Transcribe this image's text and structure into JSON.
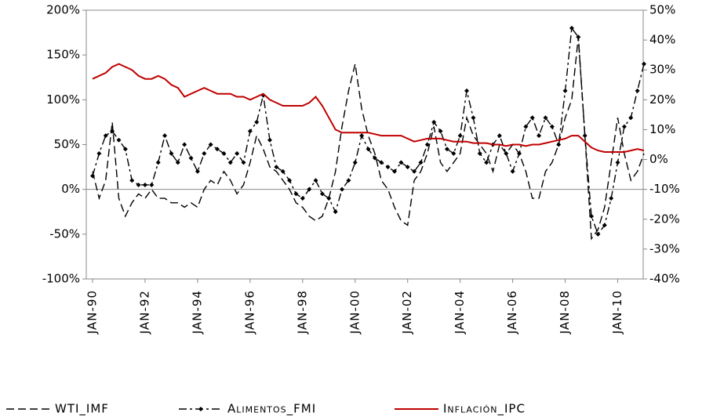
{
  "chart_data": {
    "type": "line",
    "categories": [
      "JAN-90",
      null,
      null,
      null,
      null,
      null,
      null,
      null,
      "JAN-92",
      null,
      null,
      null,
      null,
      null,
      null,
      null,
      "JAN-94",
      null,
      null,
      null,
      null,
      null,
      null,
      null,
      "JAN-96",
      null,
      null,
      null,
      null,
      null,
      null,
      null,
      "JAN-98",
      null,
      null,
      null,
      null,
      null,
      null,
      null,
      "JAN-00",
      null,
      null,
      null,
      null,
      null,
      null,
      null,
      "JAN-02",
      null,
      null,
      null,
      null,
      null,
      null,
      null,
      "JAN-04",
      null,
      null,
      null,
      null,
      null,
      null,
      null,
      "JAN-06",
      null,
      null,
      null,
      null,
      null,
      null,
      null,
      "JAN-08",
      null,
      null,
      null,
      null,
      null,
      null,
      null,
      "JAN-10",
      null,
      null,
      null,
      null
    ],
    "series": [
      {
        "name": "WTI_IMF",
        "color": "#000000",
        "line_style": "dashed",
        "marker": "none",
        "values": [
          20,
          -10,
          10,
          75,
          -10,
          -30,
          -15,
          -5,
          -10,
          0,
          -10,
          -10,
          -15,
          -15,
          -20,
          -15,
          -20,
          0,
          10,
          5,
          20,
          10,
          -5,
          5,
          30,
          60,
          45,
          25,
          20,
          10,
          0,
          -15,
          -20,
          -30,
          -35,
          -30,
          -10,
          20,
          70,
          110,
          140,
          90,
          60,
          40,
          10,
          0,
          -20,
          -35,
          -40,
          10,
          20,
          40,
          70,
          30,
          20,
          30,
          40,
          80,
          60,
          50,
          40,
          20,
          50,
          40,
          50,
          40,
          20,
          -10,
          -10,
          20,
          30,
          50,
          80,
          100,
          170,
          60,
          -55,
          -45,
          -20,
          30,
          80,
          40,
          10,
          20,
          40
        ]
      },
      {
        "name": "Alimentos_FMI",
        "color": "#000000",
        "line_style": "dashdot",
        "marker": "diamond",
        "values": [
          15,
          40,
          60,
          65,
          55,
          45,
          10,
          5,
          5,
          5,
          30,
          60,
          40,
          30,
          50,
          35,
          20,
          40,
          50,
          45,
          40,
          30,
          40,
          30,
          65,
          75,
          105,
          55,
          25,
          20,
          10,
          -5,
          -10,
          0,
          10,
          -5,
          -10,
          -25,
          0,
          10,
          30,
          60,
          45,
          35,
          30,
          25,
          20,
          30,
          25,
          20,
          30,
          50,
          75,
          65,
          45,
          40,
          60,
          110,
          80,
          40,
          30,
          50,
          60,
          40,
          20,
          40,
          70,
          80,
          60,
          80,
          70,
          50,
          110,
          180,
          170,
          60,
          -30,
          -50,
          -40,
          -10,
          30,
          70,
          80,
          110,
          140
        ]
      },
      {
        "name": "Inflación_IPC",
        "color": "#c00000",
        "line_style": "solid",
        "marker": "none",
        "axis": "y2",
        "values": [
          27,
          28,
          29,
          31,
          32,
          31,
          30,
          28,
          27,
          27,
          28,
          27,
          25,
          24,
          21,
          22,
          23,
          24,
          23,
          22,
          22,
          22,
          21,
          21,
          20,
          21,
          22,
          20,
          19,
          18,
          18,
          18,
          18,
          19,
          21,
          18,
          14,
          10,
          9,
          9,
          9,
          9,
          9,
          8.5,
          8,
          8,
          8,
          8,
          7,
          6,
          6.5,
          7,
          7,
          7,
          6.5,
          6,
          6,
          6,
          5.5,
          5.5,
          5.5,
          5,
          5,
          4.5,
          5,
          5,
          4.5,
          5,
          5,
          5.5,
          6,
          6.5,
          7,
          8,
          8,
          6,
          4,
          3,
          2.5,
          2.5,
          2.5,
          2.5,
          3,
          3.5,
          3
        ]
      }
    ],
    "ylim": [
      -100,
      200
    ],
    "yticks": [
      {
        "value": -100,
        "label": "-100%"
      },
      {
        "value": -50,
        "label": "-50%"
      },
      {
        "value": 0,
        "label": "0%"
      },
      {
        "value": 50,
        "label": "50%"
      },
      {
        "value": 100,
        "label": "100%"
      },
      {
        "value": 150,
        "label": "150%"
      },
      {
        "value": 200,
        "label": "200%"
      }
    ],
    "y2lim": [
      -40,
      50
    ],
    "y2ticks": [
      {
        "value": -40,
        "label": "-40%"
      },
      {
        "value": -30,
        "label": "-30%"
      },
      {
        "value": -20,
        "label": "-20%"
      },
      {
        "value": -10,
        "label": "-10%"
      },
      {
        "value": 0,
        "label": "0%"
      },
      {
        "value": 10,
        "label": "10%"
      },
      {
        "value": 20,
        "label": "20%"
      },
      {
        "value": 30,
        "label": "30%"
      },
      {
        "value": 40,
        "label": "40%"
      },
      {
        "value": 50,
        "label": "50%"
      }
    ],
    "grid": false,
    "legend": "bottom"
  }
}
